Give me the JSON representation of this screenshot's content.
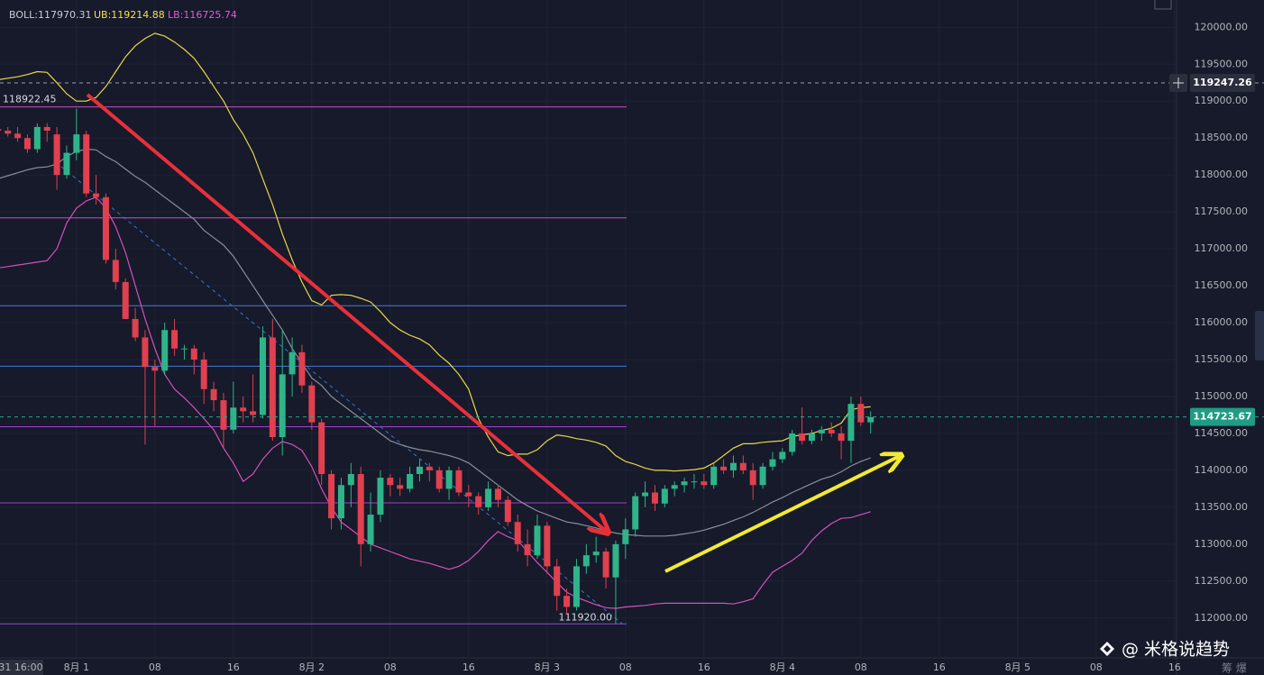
{
  "chart_data": {
    "type": "candlestick",
    "indicator": {
      "label": "BOLL:117970.31",
      "ub": "UB:119214.88",
      "lb": "LB:116725.74",
      "label_color": "#c9ccd6",
      "ub_color": "#f5e04a",
      "lb_color": "#e35bd0"
    },
    "up_color": "#2fb48a",
    "down_color": "#e0404f",
    "grid": true,
    "xlim": [
      0.2,
      120.2
    ],
    "xticks": [
      {
        "value": 0,
        "label": "31 16:00"
      },
      {
        "value": 8,
        "label": "8月 1"
      },
      {
        "value": 16,
        "label": "08"
      },
      {
        "value": 24,
        "label": "16"
      },
      {
        "value": 32,
        "label": "8月 2"
      },
      {
        "value": 40,
        "label": "08"
      },
      {
        "value": 48,
        "label": "16"
      },
      {
        "value": 56,
        "label": "8月 3"
      },
      {
        "value": 64,
        "label": "08"
      },
      {
        "value": 72,
        "label": "16"
      },
      {
        "value": 80,
        "label": "8月 4"
      },
      {
        "value": 88,
        "label": "08"
      },
      {
        "value": 96,
        "label": "16"
      },
      {
        "value": 104,
        "label": "8月 5"
      },
      {
        "value": 112,
        "label": "08"
      },
      {
        "value": 120,
        "label": "16"
      }
    ],
    "ylim": [
      111460,
      120370
    ],
    "yticks": [
      {
        "value": 112000,
        "label": "112000.00"
      },
      {
        "value": 112500,
        "label": "112500.00"
      },
      {
        "value": 113000,
        "label": "113000.00"
      },
      {
        "value": 113500,
        "label": "113500.00"
      },
      {
        "value": 114000,
        "label": "114000.00"
      },
      {
        "value": 114500,
        "label": "114500.00"
      },
      {
        "value": 115000,
        "label": "115000.00"
      },
      {
        "value": 115500,
        "label": "115500.00"
      },
      {
        "value": 116000,
        "label": "116000.00"
      },
      {
        "value": 116500,
        "label": "116500.00"
      },
      {
        "value": 117000,
        "label": "117000.00"
      },
      {
        "value": 117500,
        "label": "117500.00"
      },
      {
        "value": 118000,
        "label": "118000.00"
      },
      {
        "value": 118500,
        "label": "118500.00"
      },
      {
        "value": 119000,
        "label": "119000.00"
      },
      {
        "value": 119500,
        "label": "119500.00"
      },
      {
        "value": 120000,
        "label": "120000.00"
      }
    ],
    "open": [
      118620,
      118600,
      118560,
      118500,
      118350,
      118650,
      118550,
      118000,
      118300,
      118550,
      117750,
      117700,
      116850,
      116550,
      116050,
      115800,
      115400,
      115350,
      115900,
      115650,
      115650,
      115500,
      115100,
      114950,
      114550,
      114850,
      114800,
      114750,
      115800,
      114450,
      115300,
      115600,
      115150,
      114650,
      113950,
      113350,
      113800,
      113950,
      113000,
      113400,
      113900,
      113800,
      113750,
      113950,
      114050,
      114000,
      113750,
      114000,
      113700,
      113650,
      113500,
      113750,
      113600,
      113300,
      113000,
      112850,
      113250,
      112700,
      112300,
      112150,
      112700,
      112850,
      112900,
      112550,
      113000,
      113200,
      113650,
      113700,
      113550,
      113750,
      113800,
      113850,
      113850,
      113800,
      114050,
      114000,
      114100,
      114000,
      113800,
      114050,
      114150,
      114250,
      114500,
      114400,
      114500,
      114550,
      114500,
      114400,
      114900,
      114650
    ],
    "high": [
      118700,
      118650,
      118650,
      118550,
      118700,
      118700,
      118650,
      118400,
      118900,
      118600,
      118000,
      117750,
      117000,
      116600,
      116200,
      115900,
      115500,
      116000,
      116050,
      115700,
      115700,
      115600,
      115200,
      115050,
      115200,
      115000,
      115300,
      115950,
      116050,
      115900,
      115800,
      115700,
      115200,
      114700,
      114000,
      113900,
      114100,
      114050,
      113700,
      114000,
      113950,
      113900,
      114050,
      114150,
      114100,
      114050,
      114050,
      114050,
      113800,
      113700,
      113850,
      113800,
      113650,
      113400,
      113200,
      113400,
      113300,
      112800,
      112400,
      112800,
      113000,
      113100,
      112950,
      113050,
      113350,
      113700,
      113850,
      113800,
      113800,
      113850,
      113900,
      113950,
      113950,
      114100,
      114150,
      114200,
      114200,
      114100,
      114100,
      114250,
      114300,
      114550,
      114850,
      114550,
      114600,
      114650,
      114600,
      115000,
      115000,
      114800
    ],
    "low": [
      118500,
      118520,
      118450,
      118300,
      118300,
      118450,
      117800,
      117950,
      118200,
      117700,
      117600,
      116800,
      116450,
      116050,
      115750,
      114350,
      114600,
      115300,
      115550,
      115500,
      115300,
      114900,
      114800,
      114300,
      114500,
      114650,
      114650,
      114700,
      114400,
      114200,
      115000,
      115050,
      114550,
      113800,
      113200,
      113200,
      113500,
      112700,
      112900,
      113300,
      113650,
      113650,
      113700,
      113850,
      113850,
      113700,
      113600,
      113650,
      113500,
      113400,
      113450,
      113500,
      113250,
      112900,
      112700,
      112800,
      112600,
      112100,
      112050,
      112100,
      112600,
      112750,
      112400,
      111920,
      112800,
      113100,
      113500,
      113450,
      113500,
      113650,
      113700,
      113750,
      113750,
      113750,
      113950,
      113900,
      113950,
      113600,
      113750,
      114000,
      114100,
      114200,
      114350,
      114350,
      114400,
      114450,
      114150,
      114100,
      114600,
      114500
    ],
    "close": [
      118600,
      118560,
      118500,
      118350,
      118650,
      118600,
      118000,
      118300,
      118550,
      117750,
      117700,
      116850,
      116550,
      116050,
      115800,
      115400,
      115350,
      115900,
      115650,
      115650,
      115500,
      115100,
      114950,
      114550,
      114850,
      114800,
      114750,
      115800,
      114450,
      115300,
      115600,
      115150,
      114650,
      113950,
      113350,
      113800,
      113950,
      113000,
      113400,
      113900,
      113800,
      113750,
      113950,
      114050,
      114000,
      113750,
      114000,
      113700,
      113650,
      113500,
      113750,
      113600,
      113300,
      113000,
      112850,
      113250,
      112700,
      112300,
      112150,
      112700,
      112850,
      112900,
      112550,
      113000,
      113200,
      113650,
      113700,
      113550,
      113750,
      113800,
      113850,
      113850,
      113800,
      114050,
      114000,
      114100,
      114000,
      113800,
      114050,
      114150,
      114250,
      114500,
      114400,
      114500,
      114550,
      114500,
      114400,
      114900,
      114650,
      114720
    ],
    "bands": [
      {
        "color": "#e8d84a",
        "values": [
          119290,
          119310,
          119330,
          119360,
          119400,
          119390,
          119250,
          119100,
          119000,
          119000,
          119050,
          119200,
          119400,
          119600,
          119750,
          119850,
          119920,
          119880,
          119800,
          119700,
          119580,
          119400,
          119200,
          119000,
          118750,
          118550,
          118300,
          117950,
          117600,
          117200,
          116850,
          116550,
          116300,
          116240,
          116370,
          116380,
          116370,
          116330,
          116280,
          116150,
          116000,
          115900,
          115830,
          115780,
          115700,
          115560,
          115450,
          115300,
          115100,
          114700,
          114450,
          114250,
          114200,
          114220,
          114220,
          114280,
          114400,
          114480,
          114460,
          114430,
          114410,
          114380,
          114330,
          114200,
          114120,
          114080,
          114030,
          114000,
          114000,
          113990,
          114000,
          114010,
          114030,
          114100,
          114200,
          114300,
          114360,
          114360,
          114380,
          114390,
          114400,
          114460,
          114480,
          114500,
          114540,
          114570,
          114640,
          114820,
          114850,
          114860
        ]
      },
      {
        "color": "#8a8d99",
        "values": [
          117950,
          117990,
          118030,
          118070,
          118100,
          118110,
          118150,
          118250,
          118320,
          118350,
          118340,
          118250,
          118180,
          118080,
          117980,
          117900,
          117800,
          117700,
          117600,
          117500,
          117400,
          117250,
          117150,
          117050,
          116900,
          116700,
          116500,
          116300,
          116100,
          115900,
          115650,
          115450,
          115250,
          115150,
          115000,
          114900,
          114800,
          114700,
          114600,
          114500,
          114400,
          114350,
          114310,
          114280,
          114260,
          114230,
          114200,
          114160,
          114100,
          114000,
          113900,
          113800,
          113700,
          113600,
          113520,
          113450,
          113400,
          113350,
          113300,
          113280,
          113250,
          113220,
          113180,
          113150,
          113130,
          113120,
          113110,
          113110,
          113110,
          113120,
          113140,
          113160,
          113190,
          113230,
          113270,
          113320,
          113370,
          113430,
          113500,
          113570,
          113630,
          113700,
          113760,
          113820,
          113880,
          113920,
          113980,
          114060,
          114120,
          114170
        ]
      },
      {
        "color": "#d451b8",
        "values": [
          116740,
          116760,
          116780,
          116800,
          116820,
          116840,
          117000,
          117350,
          117550,
          117650,
          117700,
          117550,
          117300,
          116950,
          116500,
          116050,
          115650,
          115300,
          115100,
          114980,
          114850,
          114700,
          114550,
          114300,
          114100,
          113850,
          113950,
          114150,
          114300,
          114390,
          114350,
          114270,
          114050,
          113750,
          113500,
          113300,
          113200,
          113100,
          113000,
          112950,
          112900,
          112850,
          112800,
          112770,
          112740,
          112700,
          112660,
          112700,
          112780,
          112900,
          113050,
          113170,
          113100,
          113050,
          112900,
          112750,
          112620,
          112480,
          112350,
          112280,
          112230,
          112180,
          112140,
          112130,
          112150,
          112160,
          112170,
          112190,
          112200,
          112200,
          112200,
          112200,
          112200,
          112200,
          112200,
          112190,
          112220,
          112260,
          112450,
          112620,
          112700,
          112780,
          112880,
          113050,
          113180,
          113280,
          113350,
          113360,
          113400,
          113440
        ]
      }
    ],
    "levels": [
      {
        "value": 118922.45,
        "color": "#c94fc6"
      },
      {
        "value": 117420,
        "color": "#c94fc6"
      },
      {
        "value": 116230,
        "color": "#4a78d8"
      },
      {
        "value": 115410,
        "color": "#4a78d8"
      },
      {
        "value": 114590,
        "color": "#a43fd0"
      },
      {
        "value": 113560,
        "color": "#a43fd0"
      },
      {
        "value": {
          "value": 111920,
          "label": "111920.00"
        },
        "color": "#8a4de0"
      }
    ],
    "price_lines": [
      {
        "value": 119247.26,
        "color": "#9a9cab",
        "tag": "#2a2e3d"
      },
      {
        "value": 114723.67,
        "color": "#2aa88e",
        "tag": "#1f9c85"
      }
    ],
    "watermark": "@ 米格说趋势",
    "corner_text": "筹 爆"
  }
}
